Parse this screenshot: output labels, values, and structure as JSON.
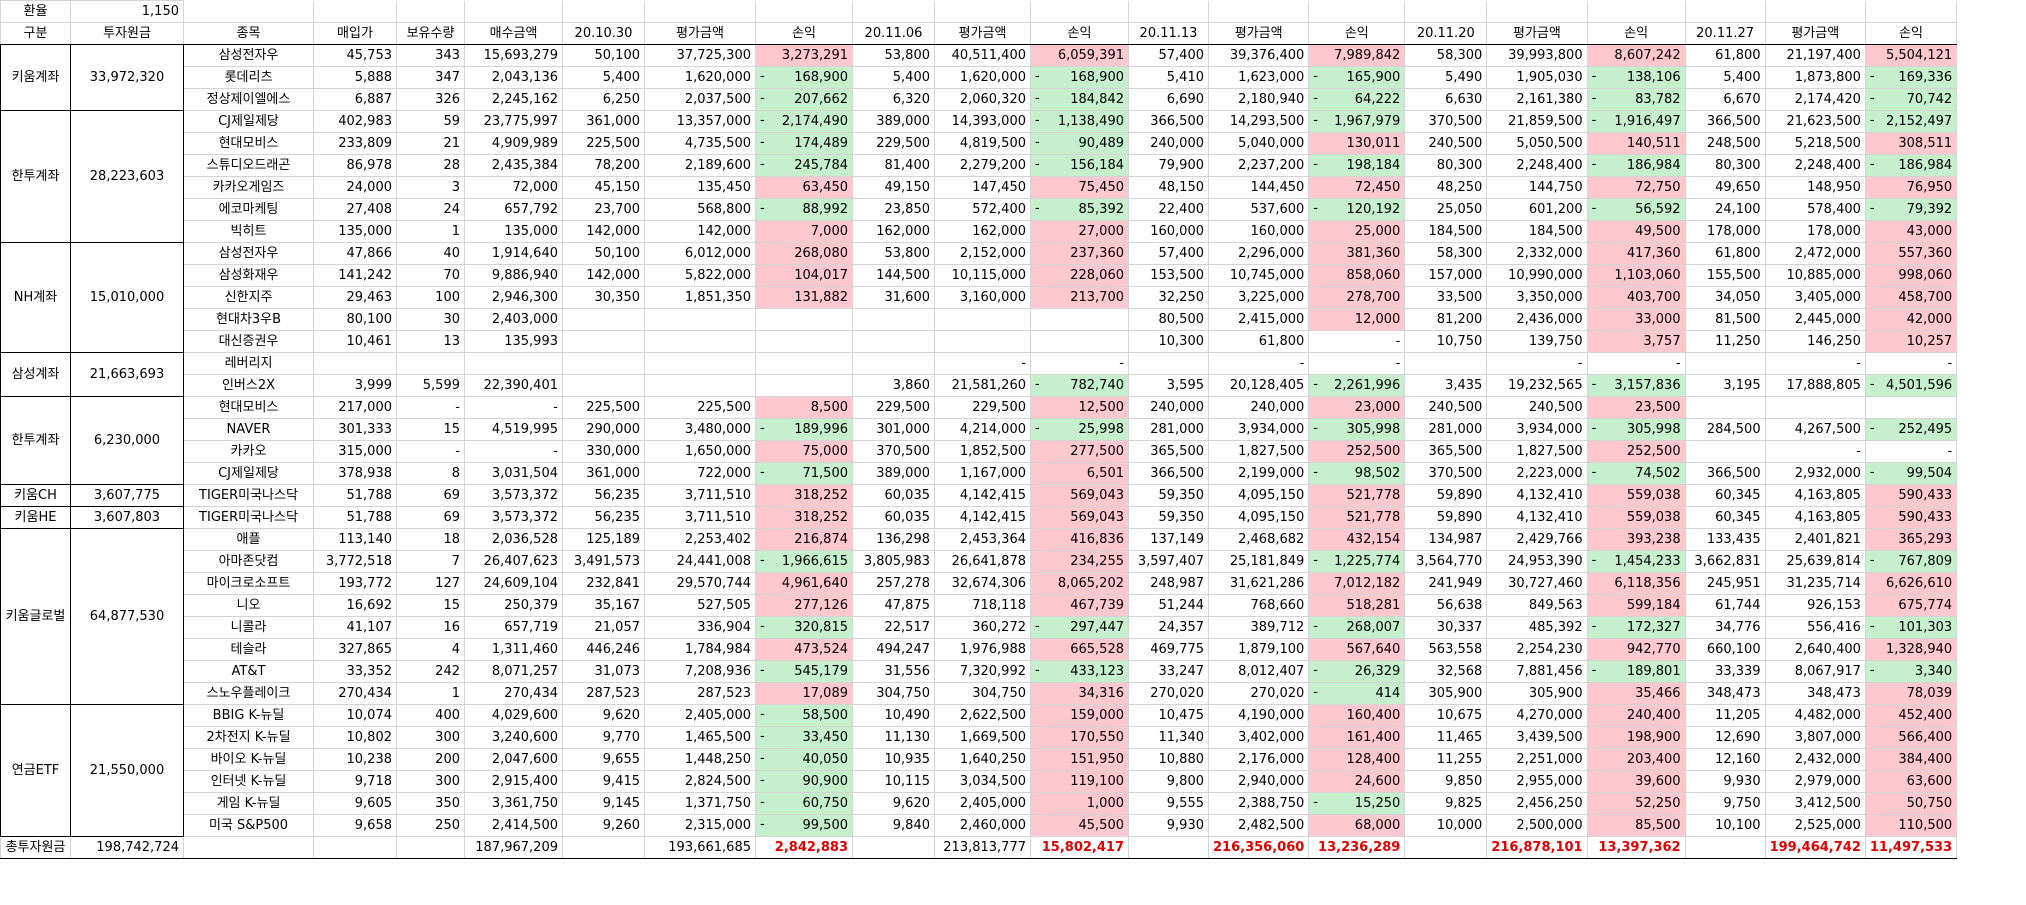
{
  "exchange_rate": {
    "label": "환율",
    "value": "1,150"
  },
  "headers": [
    "구분",
    "투자원금",
    "종목",
    "매입가",
    "보유수량",
    "매수금액",
    "20.10.30",
    "평가금액",
    "손익",
    "20.11.06",
    "평가금액",
    "손익",
    "20.11.13",
    "평가금액",
    "손익",
    "20.11.20",
    "평가금액",
    "손익",
    "20.11.27",
    "평가금액",
    "손익"
  ],
  "groups": [
    {
      "name": "키움계좌",
      "principal": "33,972,320",
      "rows": [
        [
          "삼성전자우",
          "45,753",
          "343",
          "15,693,279",
          "50,100",
          "37,725,300",
          "3,273,291",
          "53,800",
          "40,511,400",
          "6,059,391",
          "57,400",
          "39,376,400",
          "7,989,842",
          "58,300",
          "39,993,800",
          "8,607,242",
          "61,800",
          "21,197,400",
          "5,504,121"
        ],
        [
          "롯데리츠",
          "5,888",
          "347",
          "2,043,136",
          "5,400",
          "1,620,000",
          "- 168,900",
          "5,400",
          "1,620,000",
          "- 168,900",
          "5,410",
          "1,623,000",
          "- 165,900",
          "5,490",
          "1,905,030",
          "- 138,106",
          "5,400",
          "1,873,800",
          "- 169,336"
        ],
        [
          "정상제이엘에스",
          "6,887",
          "326",
          "2,245,162",
          "6,250",
          "2,037,500",
          "- 207,662",
          "6,320",
          "2,060,320",
          "- 184,842",
          "6,690",
          "2,180,940",
          "- 64,222",
          "6,630",
          "2,161,380",
          "- 83,782",
          "6,670",
          "2,174,420",
          "- 70,742"
        ]
      ]
    },
    {
      "name": "한투계좌",
      "principal": "28,223,603",
      "rows": [
        [
          "CJ제일제당",
          "402,983",
          "59",
          "23,775,997",
          "361,000",
          "13,357,000",
          "- 2,174,490",
          "389,000",
          "14,393,000",
          "- 1,138,490",
          "366,500",
          "14,293,500",
          "- 1,967,979",
          "370,500",
          "21,859,500",
          "- 1,916,497",
          "366,500",
          "21,623,500",
          "- 2,152,497"
        ],
        [
          "현대모비스",
          "233,809",
          "21",
          "4,909,989",
          "225,500",
          "4,735,500",
          "- 174,489",
          "229,500",
          "4,819,500",
          "- 90,489",
          "240,000",
          "5,040,000",
          "130,011",
          "240,500",
          "5,050,500",
          "140,511",
          "248,500",
          "5,218,500",
          "308,511"
        ],
        [
          "스튜디오드래곤",
          "86,978",
          "28",
          "2,435,384",
          "78,200",
          "2,189,600",
          "- 245,784",
          "81,400",
          "2,279,200",
          "- 156,184",
          "79,900",
          "2,237,200",
          "- 198,184",
          "80,300",
          "2,248,400",
          "- 186,984",
          "80,300",
          "2,248,400",
          "- 186,984"
        ],
        [
          "카카오게임즈",
          "24,000",
          "3",
          "72,000",
          "45,150",
          "135,450",
          "63,450",
          "49,150",
          "147,450",
          "75,450",
          "48,150",
          "144,450",
          "72,450",
          "48,250",
          "144,750",
          "72,750",
          "49,650",
          "148,950",
          "76,950"
        ],
        [
          "에코마케팅",
          "27,408",
          "24",
          "657,792",
          "23,700",
          "568,800",
          "- 88,992",
          "23,850",
          "572,400",
          "- 85,392",
          "22,400",
          "537,600",
          "- 120,192",
          "25,050",
          "601,200",
          "- 56,592",
          "24,100",
          "578,400",
          "- 79,392"
        ],
        [
          "빅히트",
          "135,000",
          "1",
          "135,000",
          "142,000",
          "142,000",
          "7,000",
          "162,000",
          "162,000",
          "27,000",
          "160,000",
          "160,000",
          "25,000",
          "184,500",
          "184,500",
          "49,500",
          "178,000",
          "178,000",
          "43,000"
        ]
      ]
    },
    {
      "name": "NH계좌",
      "principal": "15,010,000",
      "rows": [
        [
          "삼성전자우",
          "47,866",
          "40",
          "1,914,640",
          "50,100",
          "6,012,000",
          "268,080",
          "53,800",
          "2,152,000",
          "237,360",
          "57,400",
          "2,296,000",
          "381,360",
          "58,300",
          "2,332,000",
          "417,360",
          "61,800",
          "2,472,000",
          "557,360"
        ],
        [
          "삼성화재우",
          "141,242",
          "70",
          "9,886,940",
          "142,000",
          "5,822,000",
          "104,017",
          "144,500",
          "10,115,000",
          "228,060",
          "153,500",
          "10,745,000",
          "858,060",
          "157,000",
          "10,990,000",
          "1,103,060",
          "155,500",
          "10,885,000",
          "998,060"
        ],
        [
          "신한지주",
          "29,463",
          "100",
          "2,946,300",
          "30,350",
          "1,851,350",
          "131,882",
          "31,600",
          "3,160,000",
          "213,700",
          "32,250",
          "3,225,000",
          "278,700",
          "33,500",
          "3,350,000",
          "403,700",
          "34,050",
          "3,405,000",
          "458,700"
        ],
        [
          "현대차3우B",
          "80,100",
          "30",
          "2,403,000",
          "",
          "",
          "",
          "",
          "",
          "",
          "80,500",
          "2,415,000",
          "12,000",
          "81,200",
          "2,436,000",
          "33,000",
          "81,500",
          "2,445,000",
          "42,000"
        ],
        [
          "대신증권우",
          "10,461",
          "13",
          "135,993",
          "",
          "",
          "",
          "",
          "",
          "",
          "10,300",
          "61,800",
          "-",
          "10,750",
          "139,750",
          "3,757",
          "11,250",
          "146,250",
          "10,257"
        ]
      ]
    },
    {
      "name": "삼성계좌",
      "principal": "21,663,693",
      "rows": [
        [
          "레버리지",
          "",
          "",
          "",
          "",
          "",
          "",
          "",
          "-",
          "-",
          "",
          "-",
          "-",
          "",
          "-",
          "-",
          "",
          "-",
          "-"
        ],
        [
          "인버스2X",
          "3,999",
          "5,599",
          "22,390,401",
          "",
          "",
          "",
          "3,860",
          "21,581,260",
          "- 782,740",
          "3,595",
          "20,128,405",
          "- 2,261,996",
          "3,435",
          "19,232,565",
          "- 3,157,836",
          "3,195",
          "17,888,805",
          "- 4,501,596"
        ]
      ]
    },
    {
      "name": "한투계좌",
      "principal": "6,230,000",
      "rows": [
        [
          "현대모비스",
          "217,000",
          "-",
          "-",
          "225,500",
          "225,500",
          "8,500",
          "229,500",
          "229,500",
          "12,500",
          "240,000",
          "240,000",
          "23,000",
          "240,500",
          "240,500",
          "23,500",
          "",
          "",
          ""
        ],
        [
          "NAVER",
          "301,333",
          "15",
          "4,519,995",
          "290,000",
          "3,480,000",
          "- 189,996",
          "301,000",
          "4,214,000",
          "- 25,998",
          "281,000",
          "3,934,000",
          "- 305,998",
          "281,000",
          "3,934,000",
          "- 305,998",
          "284,500",
          "4,267,500",
          "- 252,495"
        ],
        [
          "카카오",
          "315,000",
          "-",
          "-",
          "330,000",
          "1,650,000",
          "75,000",
          "370,500",
          "1,852,500",
          "277,500",
          "365,500",
          "1,827,500",
          "252,500",
          "365,500",
          "1,827,500",
          "252,500",
          "",
          "-",
          "-"
        ],
        [
          "CJ제일제당",
          "378,938",
          "8",
          "3,031,504",
          "361,000",
          "722,000",
          "- 71,500",
          "389,000",
          "1,167,000",
          "6,501",
          "366,500",
          "2,199,000",
          "- 98,502",
          "370,500",
          "2,223,000",
          "- 74,502",
          "366,500",
          "2,932,000",
          "- 99,504"
        ]
      ]
    },
    {
      "name": "키움CH",
      "principal": "3,607,775",
      "rows": [
        [
          "TIGER미국나스닥",
          "51,788",
          "69",
          "3,573,372",
          "56,235",
          "3,711,510",
          "318,252",
          "60,035",
          "4,142,415",
          "569,043",
          "59,350",
          "4,095,150",
          "521,778",
          "59,890",
          "4,132,410",
          "559,038",
          "60,345",
          "4,163,805",
          "590,433"
        ]
      ]
    },
    {
      "name": "키움HE",
      "principal": "3,607,803",
      "rows": [
        [
          "TIGER미국나스닥",
          "51,788",
          "69",
          "3,573,372",
          "56,235",
          "3,711,510",
          "318,252",
          "60,035",
          "4,142,415",
          "569,043",
          "59,350",
          "4,095,150",
          "521,778",
          "59,890",
          "4,132,410",
          "559,038",
          "60,345",
          "4,163,805",
          "590,433"
        ]
      ]
    },
    {
      "name": "키움글로벌",
      "principal": "64,877,530",
      "rows": [
        [
          "애플",
          "113,140",
          "18",
          "2,036,528",
          "125,189",
          "2,253,402",
          "216,874",
          "136,298",
          "2,453,364",
          "416,836",
          "137,149",
          "2,468,682",
          "432,154",
          "134,987",
          "2,429,766",
          "393,238",
          "133,435",
          "2,401,821",
          "365,293"
        ],
        [
          "아마존닷컴",
          "3,772,518",
          "7",
          "26,407,623",
          "3,491,573",
          "24,441,008",
          "- 1,966,615",
          "3,805,983",
          "26,641,878",
          "234,255",
          "3,597,407",
          "25,181,849",
          "- 1,225,774",
          "3,564,770",
          "24,953,390",
          "- 1,454,233",
          "3,662,831",
          "25,639,814",
          "- 767,809"
        ],
        [
          "마이크로소프트",
          "193,772",
          "127",
          "24,609,104",
          "232,841",
          "29,570,744",
          "4,961,640",
          "257,278",
          "32,674,306",
          "8,065,202",
          "248,987",
          "31,621,286",
          "7,012,182",
          "241,949",
          "30,727,460",
          "6,118,356",
          "245,951",
          "31,235,714",
          "6,626,610"
        ],
        [
          "니오",
          "16,692",
          "15",
          "250,379",
          "35,167",
          "527,505",
          "277,126",
          "47,875",
          "718,118",
          "467,739",
          "51,244",
          "768,660",
          "518,281",
          "56,638",
          "849,563",
          "599,184",
          "61,744",
          "926,153",
          "675,774"
        ],
        [
          "니콜라",
          "41,107",
          "16",
          "657,719",
          "21,057",
          "336,904",
          "- 320,815",
          "22,517",
          "360,272",
          "- 297,447",
          "24,357",
          "389,712",
          "- 268,007",
          "30,337",
          "485,392",
          "- 172,327",
          "34,776",
          "556,416",
          "- 101,303"
        ],
        [
          "테슬라",
          "327,865",
          "4",
          "1,311,460",
          "446,246",
          "1,784,984",
          "473,524",
          "494,247",
          "1,976,988",
          "665,528",
          "469,775",
          "1,879,100",
          "567,640",
          "563,558",
          "2,254,230",
          "942,770",
          "660,100",
          "2,640,400",
          "1,328,940"
        ],
        [
          "AT&T",
          "33,352",
          "242",
          "8,071,257",
          "31,073",
          "7,208,936",
          "- 545,179",
          "31,556",
          "7,320,992",
          "- 433,123",
          "33,247",
          "8,012,407",
          "- 26,329",
          "32,568",
          "7,881,456",
          "- 189,801",
          "33,339",
          "8,067,917",
          "- 3,340"
        ],
        [
          "스노우플레이크",
          "270,434",
          "1",
          "270,434",
          "287,523",
          "287,523",
          "17,089",
          "304,750",
          "304,750",
          "34,316",
          "270,020",
          "270,020",
          "- 414",
          "305,900",
          "305,900",
          "35,466",
          "348,473",
          "348,473",
          "78,039"
        ]
      ]
    },
    {
      "name": "연금ETF",
      "principal": "21,550,000",
      "rows": [
        [
          "BBIG K-뉴딜",
          "10,074",
          "400",
          "4,029,600",
          "9,620",
          "2,405,000",
          "- 58,500",
          "10,490",
          "2,622,500",
          "159,000",
          "10,475",
          "4,190,000",
          "160,400",
          "10,675",
          "4,270,000",
          "240,400",
          "11,205",
          "4,482,000",
          "452,400"
        ],
        [
          "2차전지 K-뉴딜",
          "10,802",
          "300",
          "3,240,600",
          "9,770",
          "1,465,500",
          "- 33,450",
          "11,130",
          "1,669,500",
          "170,550",
          "11,340",
          "3,402,000",
          "161,400",
          "11,465",
          "3,439,500",
          "198,900",
          "12,690",
          "3,807,000",
          "566,400"
        ],
        [
          "바이오 K-뉴딜",
          "10,238",
          "200",
          "2,047,600",
          "9,655",
          "1,448,250",
          "- 40,050",
          "10,935",
          "1,640,250",
          "151,950",
          "10,880",
          "2,176,000",
          "128,400",
          "11,255",
          "2,251,000",
          "203,400",
          "12,160",
          "2,432,000",
          "384,400"
        ],
        [
          "인터넷 K-뉴딜",
          "9,718",
          "300",
          "2,915,400",
          "9,415",
          "2,824,500",
          "- 90,900",
          "10,115",
          "3,034,500",
          "119,100",
          "9,800",
          "2,940,000",
          "24,600",
          "9,850",
          "2,955,000",
          "39,600",
          "9,930",
          "2,979,000",
          "63,600"
        ],
        [
          "게임 K-뉴딜",
          "9,605",
          "350",
          "3,361,750",
          "9,145",
          "1,371,750",
          "- 60,750",
          "9,620",
          "2,405,000",
          "1,000",
          "9,555",
          "2,388,750",
          "- 15,250",
          "9,825",
          "2,456,250",
          "52,250",
          "9,750",
          "3,412,500",
          "50,750"
        ],
        [
          "미국 S&P500",
          "9,658",
          "250",
          "2,414,500",
          "9,260",
          "2,315,000",
          "- 99,500",
          "9,840",
          "2,460,000",
          "45,500",
          "9,930",
          "2,482,500",
          "68,000",
          "10,000",
          "2,500,000",
          "85,500",
          "10,100",
          "2,525,000",
          "110,500"
        ]
      ]
    }
  ],
  "total": {
    "label": "총투자원금",
    "principal": "198,742,724",
    "cells": [
      "",
      "",
      "",
      "187,967,209",
      "",
      "193,661,685",
      "2,842,883",
      "",
      "213,813,777",
      "15,802,417",
      "",
      "216,356,060",
      "13,236,289",
      "",
      "216,878,101",
      "13,397,362",
      "",
      "199,464,742",
      "11,497,533"
    ]
  }
}
